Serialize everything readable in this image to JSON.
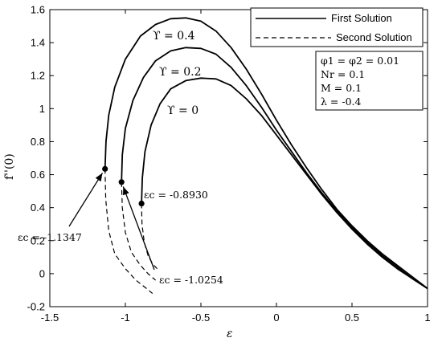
{
  "chart_data": {
    "type": "line",
    "xlabel": "ε",
    "ylabel": "f''(0)",
    "xlim": [
      -1.5,
      1
    ],
    "ylim": [
      -0.2,
      1.6
    ],
    "xticks": [
      -1.5,
      -1,
      -0.5,
      0,
      0.5,
      1
    ],
    "xtick_labels": [
      "-1.5",
      "-1",
      "-0.5",
      "0",
      "0.5",
      "1"
    ],
    "yticks": [
      -0.2,
      0,
      0.2,
      0.4,
      0.6,
      0.8,
      1,
      1.2,
      1.4,
      1.6
    ],
    "ytick_labels": [
      "-0.2",
      "0",
      "0.2",
      "0.4",
      "0.6",
      "0.8",
      "1",
      "1.2",
      "1.4",
      "1.6"
    ],
    "grid": false,
    "legend": {
      "placement": "top-right",
      "entries": [
        {
          "label": "First Solution",
          "style": "solid"
        },
        {
          "label": "Second Solution",
          "style": "dashed"
        }
      ]
    },
    "params": [
      "φ1 = φ2 = 0.01",
      "Nr = 0.1",
      "M = 0.1",
      "λ = -0.4"
    ],
    "curve_labels": [
      "ϒ = 0.4",
      "ϒ = 0.2",
      "ϒ = 0"
    ],
    "critical_labels": [
      "εc = -1.1347",
      "εc = -1.0254",
      "εc = -0.8930"
    ],
    "series": [
      {
        "param": "ϒ = 0.4",
        "critical": {
          "x": -1.1347,
          "y": 0.635
        },
        "first": [
          [
            -1.1347,
            0.635
          ],
          [
            -1.128,
            0.8
          ],
          [
            -1.11,
            0.96
          ],
          [
            -1.07,
            1.13
          ],
          [
            -1.0,
            1.3
          ],
          [
            -0.9,
            1.44
          ],
          [
            -0.8,
            1.51
          ],
          [
            -0.7,
            1.545
          ],
          [
            -0.6,
            1.55
          ],
          [
            -0.5,
            1.53
          ],
          [
            -0.4,
            1.47
          ],
          [
            -0.3,
            1.37
          ],
          [
            -0.2,
            1.24
          ],
          [
            -0.1,
            1.09
          ],
          [
            0.0,
            0.93
          ],
          [
            0.1,
            0.78
          ],
          [
            0.2,
            0.64
          ],
          [
            0.3,
            0.51
          ],
          [
            0.4,
            0.39
          ],
          [
            0.5,
            0.29
          ],
          [
            0.6,
            0.2
          ],
          [
            0.7,
            0.12
          ],
          [
            0.8,
            0.05
          ],
          [
            0.9,
            -0.02
          ],
          [
            1.0,
            -0.09
          ]
        ],
        "second": [
          [
            -1.1347,
            0.635
          ],
          [
            -1.13,
            0.45
          ],
          [
            -1.11,
            0.26
          ],
          [
            -1.07,
            0.12
          ],
          [
            -1.0,
            0.03
          ],
          [
            -0.93,
            -0.04
          ],
          [
            -0.86,
            -0.09
          ],
          [
            -0.82,
            -0.12
          ]
        ]
      },
      {
        "param": "ϒ = 0.2",
        "critical": {
          "x": -1.0254,
          "y": 0.555
        },
        "first": [
          [
            -1.0254,
            0.555
          ],
          [
            -1.02,
            0.72
          ],
          [
            -1.0,
            0.88
          ],
          [
            -0.95,
            1.05
          ],
          [
            -0.88,
            1.19
          ],
          [
            -0.8,
            1.29
          ],
          [
            -0.7,
            1.35
          ],
          [
            -0.6,
            1.37
          ],
          [
            -0.5,
            1.365
          ],
          [
            -0.4,
            1.33
          ],
          [
            -0.3,
            1.25
          ],
          [
            -0.2,
            1.14
          ],
          [
            -0.1,
            1.01
          ],
          [
            0.0,
            0.87
          ],
          [
            0.1,
            0.74
          ],
          [
            0.2,
            0.61
          ],
          [
            0.3,
            0.49
          ],
          [
            0.4,
            0.38
          ],
          [
            0.5,
            0.28
          ],
          [
            0.6,
            0.19
          ],
          [
            0.7,
            0.11
          ],
          [
            0.8,
            0.04
          ],
          [
            0.9,
            -0.03
          ],
          [
            1.0,
            -0.09
          ]
        ],
        "second": [
          [
            -1.0254,
            0.555
          ],
          [
            -1.02,
            0.4
          ],
          [
            -1.0,
            0.25
          ],
          [
            -0.96,
            0.13
          ],
          [
            -0.9,
            0.05
          ],
          [
            -0.85,
            0.0
          ],
          [
            -0.8,
            -0.04
          ]
        ]
      },
      {
        "param": "ϒ = 0",
        "critical": {
          "x": -0.893,
          "y": 0.425
        },
        "first": [
          [
            -0.893,
            0.425
          ],
          [
            -0.888,
            0.58
          ],
          [
            -0.87,
            0.74
          ],
          [
            -0.83,
            0.9
          ],
          [
            -0.77,
            1.03
          ],
          [
            -0.7,
            1.12
          ],
          [
            -0.6,
            1.17
          ],
          [
            -0.5,
            1.185
          ],
          [
            -0.4,
            1.18
          ],
          [
            -0.3,
            1.14
          ],
          [
            -0.2,
            1.06
          ],
          [
            -0.1,
            0.96
          ],
          [
            0.0,
            0.84
          ],
          [
            0.1,
            0.72
          ],
          [
            0.2,
            0.6
          ],
          [
            0.3,
            0.48
          ],
          [
            0.4,
            0.37
          ],
          [
            0.5,
            0.27
          ],
          [
            0.6,
            0.18
          ],
          [
            0.7,
            0.1
          ],
          [
            0.8,
            0.03
          ],
          [
            0.9,
            -0.03
          ],
          [
            1.0,
            -0.09
          ]
        ],
        "second": [
          [
            -0.893,
            0.425
          ],
          [
            -0.89,
            0.3
          ],
          [
            -0.875,
            0.19
          ],
          [
            -0.85,
            0.11
          ],
          [
            -0.82,
            0.06
          ],
          [
            -0.79,
            0.03
          ]
        ]
      }
    ]
  }
}
